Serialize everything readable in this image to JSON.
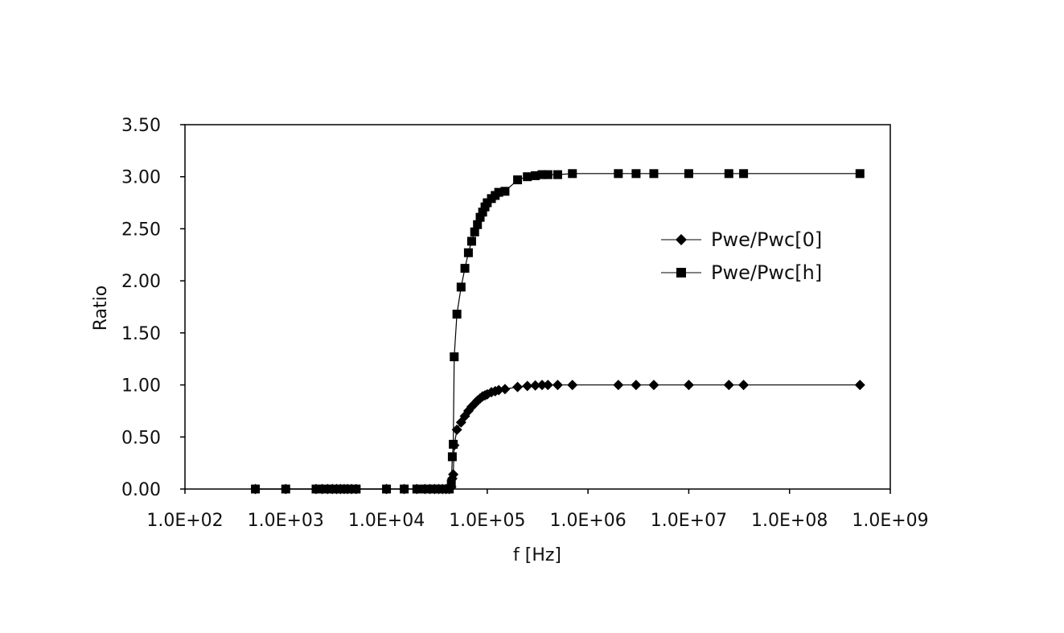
{
  "chart_data": {
    "type": "scatter",
    "title": "",
    "xlabel": "f [Hz]",
    "ylabel": "Ratio",
    "x_scale": "log",
    "xlim": [
      100,
      1000000000
    ],
    "ylim": [
      0,
      3.5
    ],
    "x_tick_values": [
      100,
      1000,
      10000,
      100000,
      1000000,
      10000000,
      100000000,
      1000000000
    ],
    "x_tick_labels": [
      "1.0E+02",
      "1.0E+03",
      "1.0E+04",
      "1.0E+05",
      "1.0E+06",
      "1.0E+07",
      "1.0E+08",
      "1.0E+09"
    ],
    "y_tick_values": [
      0,
      0.5,
      1.0,
      1.5,
      2.0,
      2.5,
      3.0,
      3.5
    ],
    "y_tick_labels": [
      "0.00",
      "0.50",
      "1.00",
      "1.50",
      "2.00",
      "2.50",
      "3.00",
      "3.50"
    ],
    "grid": false,
    "legend_position": "right",
    "series": [
      {
        "name": "Pwe/Pwc[0]",
        "marker": "diamond",
        "color": "#000000",
        "x": [
          500,
          1000,
          2000,
          2300,
          2600,
          2900,
          3200,
          3500,
          3800,
          4100,
          4500,
          5000,
          10000,
          15000,
          20000,
          24000,
          27000,
          30000,
          33000,
          36000,
          39000,
          42000,
          44000,
          45000,
          46000,
          47000,
          50000,
          55000,
          60000,
          65000,
          70000,
          75000,
          80000,
          85000,
          90000,
          95000,
          100000,
          110000,
          120000,
          130000,
          150000,
          200000,
          250000,
          300000,
          350000,
          400000,
          500000,
          700000,
          2000000,
          3000000,
          4500000,
          10000000,
          25000000,
          35000000,
          500000000
        ],
        "y": [
          0,
          0,
          0,
          0,
          0,
          0,
          0,
          0,
          0,
          0,
          0,
          0,
          0,
          0,
          0,
          0,
          0,
          0,
          0,
          0,
          0,
          0,
          0.02,
          0.1,
          0.14,
          0.42,
          0.57,
          0.64,
          0.7,
          0.75,
          0.79,
          0.82,
          0.85,
          0.87,
          0.89,
          0.9,
          0.91,
          0.93,
          0.94,
          0.95,
          0.96,
          0.98,
          0.99,
          0.995,
          1.0,
          1.0,
          1.0,
          1.0,
          1.0,
          1.0,
          1.0,
          1.0,
          1.0,
          1.0,
          1.0
        ]
      },
      {
        "name": "Pwe/Pwc[h]",
        "marker": "square",
        "color": "#000000",
        "x": [
          500,
          1000,
          2000,
          2300,
          2600,
          2900,
          3200,
          3500,
          3800,
          4100,
          4500,
          5000,
          10000,
          15000,
          20000,
          24000,
          27000,
          30000,
          33000,
          36000,
          39000,
          42000,
          44000,
          45000,
          46000,
          47000,
          50000,
          55000,
          60000,
          65000,
          70000,
          75000,
          80000,
          85000,
          90000,
          95000,
          100000,
          110000,
          120000,
          130000,
          150000,
          200000,
          250000,
          300000,
          350000,
          400000,
          500000,
          700000,
          2000000,
          3000000,
          4500000,
          10000000,
          25000000,
          35000000,
          500000000
        ],
        "y": [
          0,
          0,
          0,
          0,
          0,
          0,
          0,
          0,
          0,
          0,
          0,
          0,
          0,
          0,
          0,
          0,
          0,
          0,
          0,
          0,
          0,
          0,
          0.05,
          0.31,
          0.43,
          1.27,
          1.68,
          1.94,
          2.12,
          2.27,
          2.38,
          2.47,
          2.54,
          2.61,
          2.66,
          2.71,
          2.75,
          2.79,
          2.82,
          2.85,
          2.86,
          2.97,
          3.0,
          3.01,
          3.02,
          3.02,
          3.02,
          3.03,
          3.03,
          3.03,
          3.03,
          3.03,
          3.03,
          3.03,
          3.03
        ]
      }
    ]
  }
}
